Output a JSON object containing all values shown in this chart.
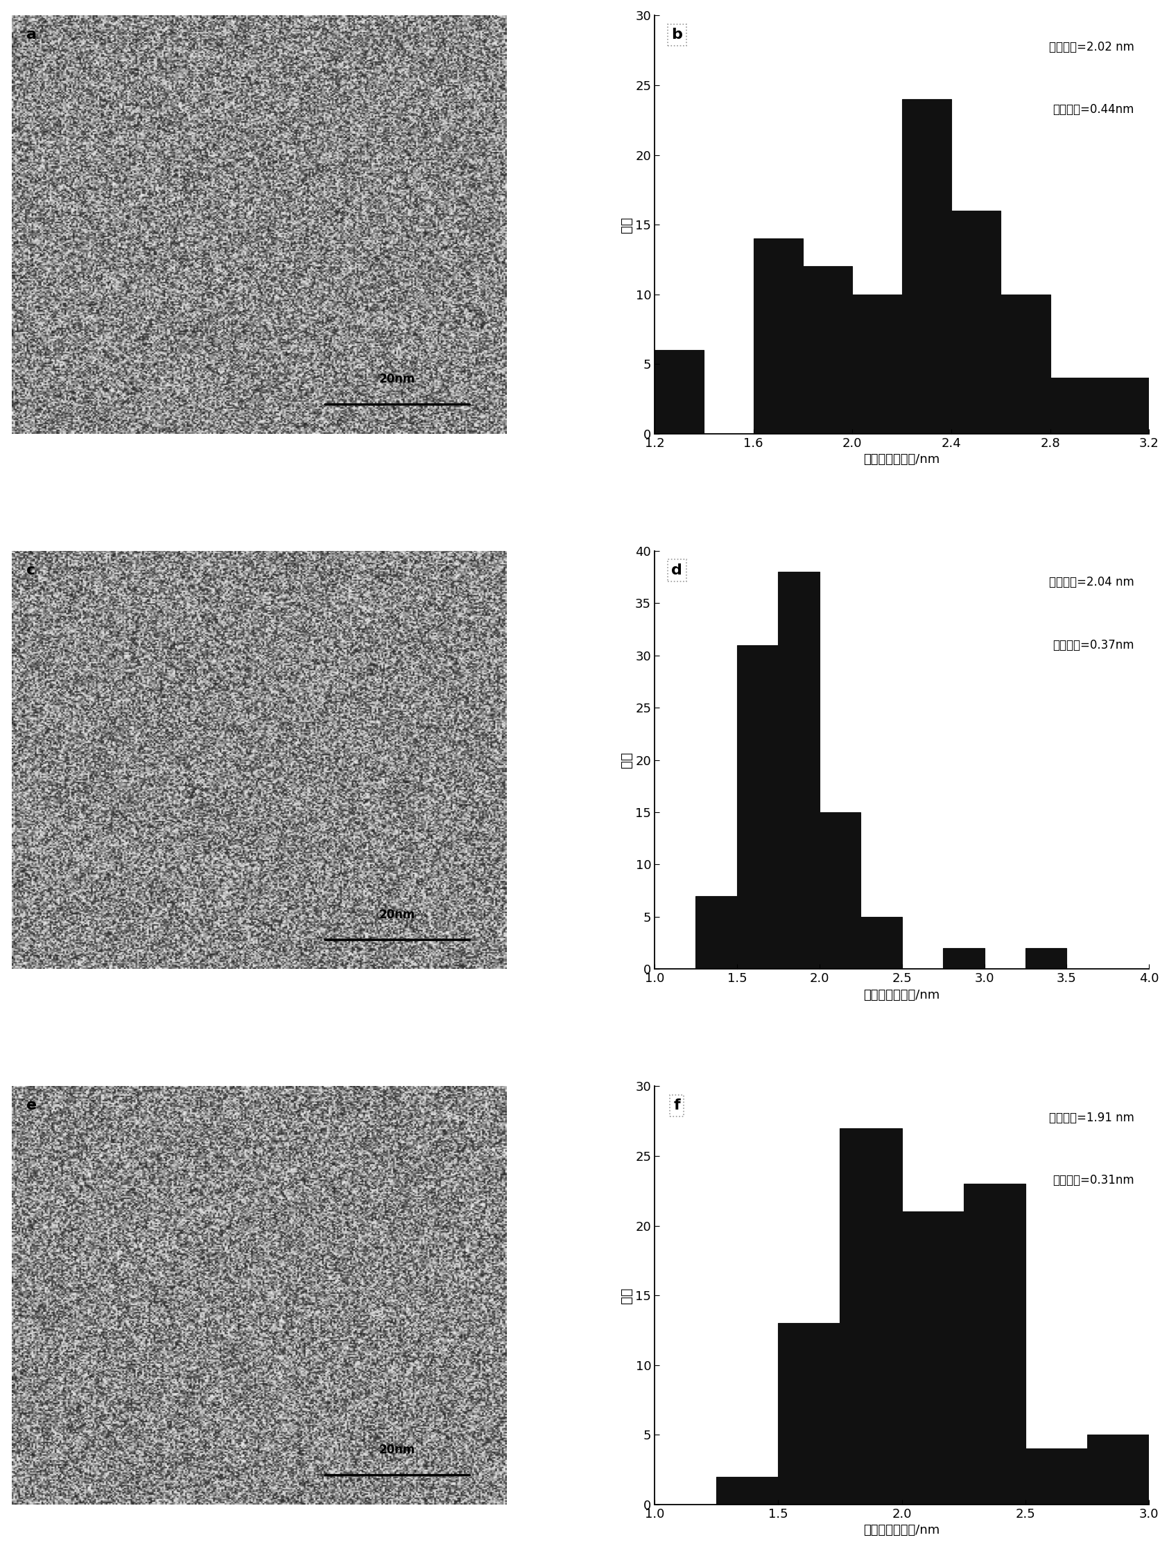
{
  "panel_b": {
    "label": "b",
    "bin_edges": [
      1.2,
      1.4,
      1.6,
      1.8,
      2.0,
      2.2,
      2.4,
      2.6,
      2.8,
      3.0,
      3.2
    ],
    "values": [
      6,
      0,
      14,
      12,
      10,
      24,
      16,
      10,
      4,
      4
    ],
    "xlim": [
      1.2,
      3.2
    ],
    "ylim": [
      0,
      30
    ],
    "xticks": [
      1.2,
      1.6,
      2.0,
      2.4,
      2.8,
      3.2
    ],
    "yticks": [
      0,
      5,
      10,
      15,
      20,
      25,
      30
    ],
    "ann1": "平均粒径=2.02 nm",
    "ann2": "标准偏差=0.44nm",
    "xlabel": "纳米粒子的直径/nm",
    "ylabel": "频率"
  },
  "panel_d": {
    "label": "d",
    "bin_edges": [
      1.25,
      1.5,
      1.75,
      2.0,
      2.25,
      2.5,
      2.75,
      3.0,
      3.25,
      3.5
    ],
    "values": [
      7,
      31,
      38,
      15,
      5,
      0,
      2,
      0,
      2
    ],
    "xlim": [
      1.0,
      4.0
    ],
    "ylim": [
      0,
      40
    ],
    "xticks": [
      1.0,
      1.5,
      2.0,
      2.5,
      3.0,
      3.5,
      4.0
    ],
    "yticks": [
      0,
      5,
      10,
      15,
      20,
      25,
      30,
      35,
      40
    ],
    "ann1": "平均粒径=2.04 nm",
    "ann2": "标准偏差=0.37nm",
    "xlabel": "纳米粒子的直径/nm",
    "ylabel": "频率"
  },
  "panel_f": {
    "label": "f",
    "bin_edges": [
      1.25,
      1.5,
      1.75,
      2.0,
      2.25,
      2.5,
      2.75,
      3.0
    ],
    "values": [
      2,
      13,
      27,
      21,
      23,
      4,
      5
    ],
    "xlim": [
      1.0,
      3.0
    ],
    "ylim": [
      0,
      30
    ],
    "xticks": [
      1.0,
      1.5,
      2.0,
      2.5,
      3.0
    ],
    "yticks": [
      0,
      5,
      10,
      15,
      20,
      25,
      30
    ],
    "ann1": "平均粒径=1.91 nm",
    "ann2": "标准偏差=0.31nm",
    "xlabel": "纳米粒子的直径/nm",
    "ylabel": "频率"
  },
  "bar_color": "#111111",
  "bar_edgecolor": "#111111",
  "img_labels": [
    "a",
    "c",
    "e"
  ],
  "img_scalebar_text": "20nm",
  "fig_width": 16.74,
  "fig_height": 22.38
}
